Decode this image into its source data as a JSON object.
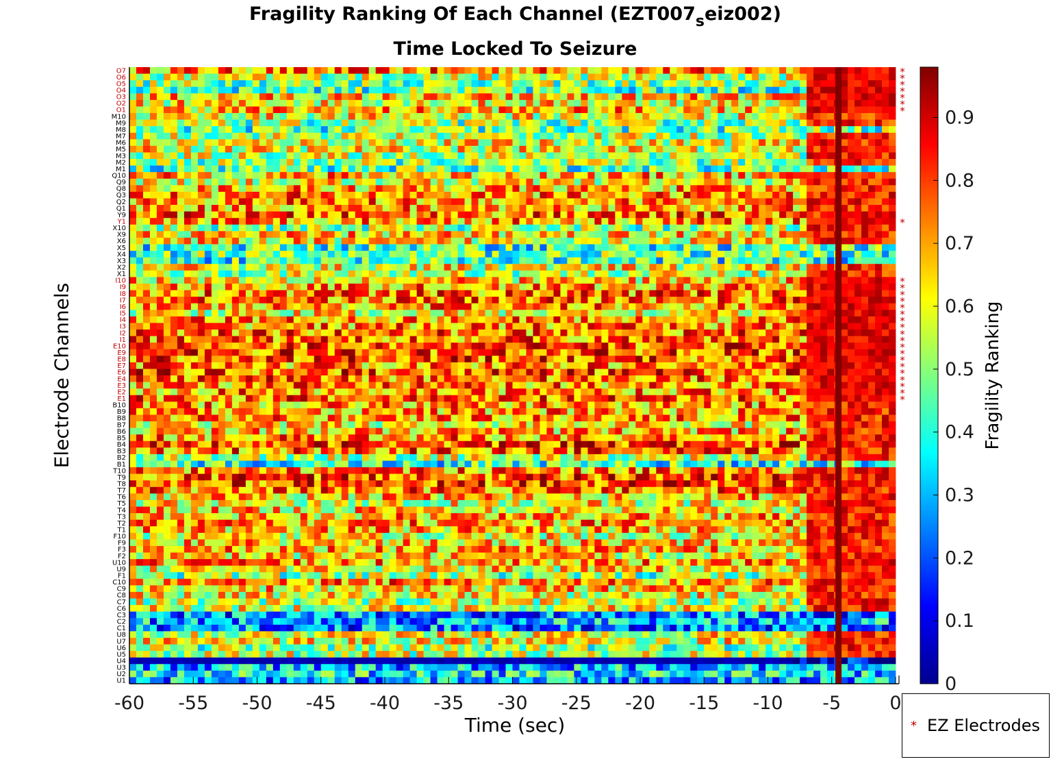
{
  "chart_data": {
    "type": "heatmap",
    "title": "Fragility Ranking Of Each Channel (EZT007",
    "title_subscript": "s",
    "title_suffix": "eiz002)",
    "subtitle": "Time Locked To Seizure",
    "xlabel": "Time (sec)",
    "ylabel": "Electrode Channels",
    "colorbar_label": "Fragility Ranking",
    "colormap": "jet",
    "xlim": [
      -60,
      0
    ],
    "clim": [
      0,
      0.98
    ],
    "x_ticks": [
      -60,
      -55,
      -50,
      -45,
      -40,
      -35,
      -30,
      -25,
      -20,
      -15,
      -10,
      -5,
      0
    ],
    "x_tick_labels": [
      "-60",
      "-55",
      "-50",
      "-45",
      "-40",
      "-35",
      "-30",
      "-25",
      "-20",
      "-15",
      "-10",
      "-5",
      "0"
    ],
    "colorbar_ticks": [
      0,
      0.1,
      0.2,
      0.3,
      0.4,
      0.5,
      0.6,
      0.7,
      0.8,
      0.9
    ],
    "colorbar_tick_labels": [
      "0",
      "0.1",
      "0.2",
      "0.3",
      "0.4",
      "0.5",
      "0.6",
      "0.7",
      "0.8",
      "0.9"
    ],
    "channels": [
      "O7",
      "O6",
      "O5",
      "O4",
      "O3",
      "O2",
      "O1",
      "M10",
      "M9",
      "M8",
      "M7",
      "M6",
      "M5",
      "M3",
      "M2",
      "M1",
      "Q10",
      "Q9",
      "Q8",
      "Q3",
      "Q2",
      "Q1",
      "Y9",
      "Y1",
      "X10",
      "X9",
      "X6",
      "X5",
      "X4",
      "X3",
      "X2",
      "X1",
      "I10",
      "I9",
      "I8",
      "I7",
      "I6",
      "I5",
      "I4",
      "I3",
      "I2",
      "I1",
      "E10",
      "E9",
      "E8",
      "E7",
      "E6",
      "E4",
      "E3",
      "E2",
      "E1",
      "B10",
      "B9",
      "B8",
      "B7",
      "B6",
      "B5",
      "B4",
      "B3",
      "B2",
      "B1",
      "T10",
      "T9",
      "T8",
      "T7",
      "T6",
      "T5",
      "T4",
      "T3",
      "T2",
      "T1",
      "F10",
      "F9",
      "F3",
      "F2",
      "U10",
      "U9",
      "F1",
      "C10",
      "C9",
      "C8",
      "C7",
      "C6",
      "C3",
      "C2",
      "C1",
      "U8",
      "U7",
      "U6",
      "U5",
      "U4",
      "U3",
      "U2",
      "U1"
    ],
    "ez_channels": [
      "O7",
      "O6",
      "O5",
      "O4",
      "O3",
      "O2",
      "O1",
      "Y1",
      "I10",
      "I9",
      "I8",
      "I7",
      "I6",
      "I5",
      "I4",
      "I3",
      "I2",
      "I1",
      "E10",
      "E9",
      "E8",
      "E7",
      "E6",
      "E4",
      "E3",
      "E2",
      "E1"
    ],
    "ez_color": "#c00000",
    "seizure_marker_time": -4.5,
    "seizure_marker_color": "#7f0000",
    "legend": {
      "marker": "*",
      "label": "EZ Electrodes",
      "placement": "bottom-right-outside"
    },
    "row_profiles": {
      "O7": 0.72,
      "O6": 0.55,
      "O5": 0.5,
      "O4": 0.45,
      "O3": 0.65,
      "O2": 0.62,
      "O1": 0.68,
      "M10": 0.6,
      "M9": 0.5,
      "M8": 0.45,
      "M7": 0.55,
      "M6": 0.6,
      "M5": 0.6,
      "M3": 0.55,
      "M2": 0.5,
      "M1": 0.45,
      "Q10": 0.68,
      "Q9": 0.6,
      "Q8": 0.68,
      "Q3": 0.72,
      "Q2": 0.72,
      "Q1": 0.7,
      "Y9": 0.75,
      "Y1": 0.72,
      "X10": 0.5,
      "X9": 0.65,
      "X6": 0.62,
      "X5": 0.42,
      "X4": 0.45,
      "X3": 0.4,
      "X2": 0.6,
      "X1": 0.55,
      "I10": 0.65,
      "I9": 0.7,
      "I8": 0.75,
      "I7": 0.75,
      "I6": 0.72,
      "I5": 0.6,
      "I4": 0.72,
      "I3": 0.72,
      "I2": 0.75,
      "I1": 0.75,
      "E10": 0.78,
      "E9": 0.78,
      "E8": 0.78,
      "E7": 0.72,
      "E6": 0.78,
      "E4": 0.75,
      "E3": 0.72,
      "E2": 0.72,
      "E1": 0.75,
      "B10": 0.7,
      "B9": 0.7,
      "B8": 0.72,
      "B7": 0.62,
      "B6": 0.68,
      "B5": 0.72,
      "B4": 0.8,
      "B3": 0.75,
      "B2": 0.55,
      "B1": 0.4,
      "T10": 0.72,
      "T9": 0.78,
      "T8": 0.78,
      "T7": 0.75,
      "T6": 0.65,
      "T5": 0.6,
      "T4": 0.65,
      "T3": 0.68,
      "T2": 0.7,
      "T1": 0.68,
      "F10": 0.6,
      "F9": 0.65,
      "F3": 0.68,
      "F2": 0.62,
      "U10": 0.7,
      "U9": 0.62,
      "F1": 0.5,
      "C10": 0.72,
      "C9": 0.65,
      "C8": 0.6,
      "C7": 0.55,
      "C6": 0.6,
      "C3": 0.25,
      "C2": 0.3,
      "C1": 0.25,
      "U8": 0.6,
      "U7": 0.6,
      "U6": 0.5,
      "U5": 0.55,
      "U4": 0.08,
      "U3": 0.3,
      "U2": 0.35,
      "U1": 0.28
    }
  }
}
